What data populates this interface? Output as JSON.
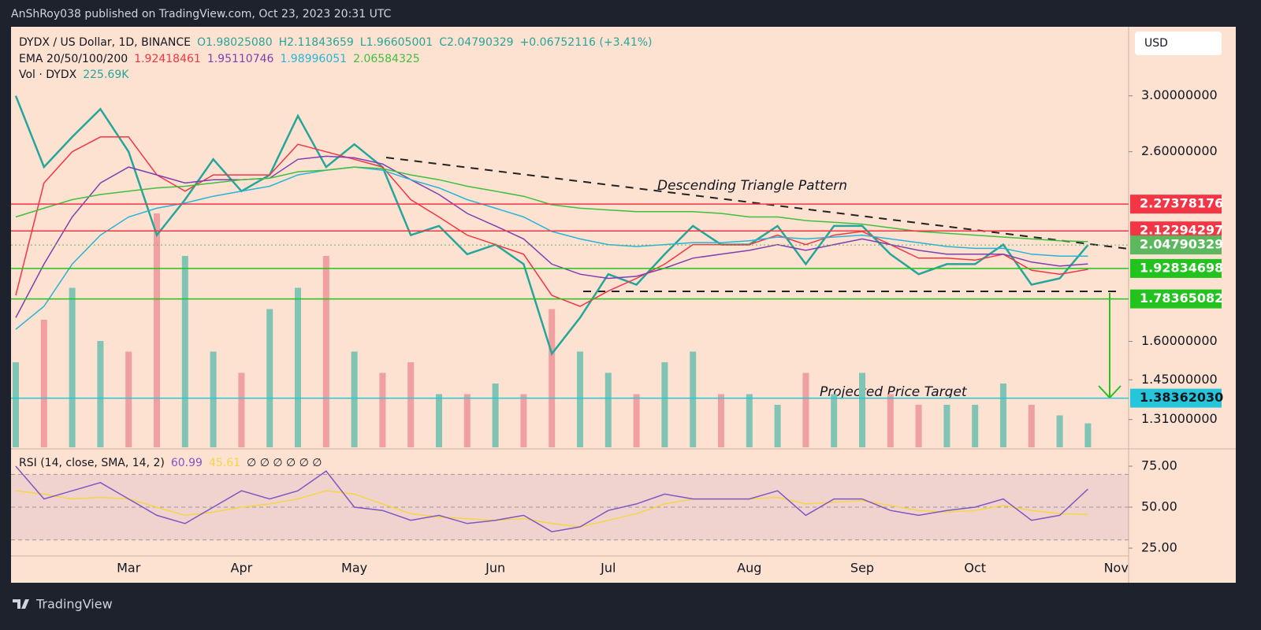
{
  "header": {
    "published": "AnShRoy038 published on TradingView.com, Oct 23, 2023 20:31 UTC"
  },
  "footer": {
    "brand": "TradingView"
  },
  "legend": {
    "symbol": "DYDX / US Dollar, 1D, BINANCE",
    "open": "O1.98025080",
    "high": "H2.11843659",
    "low": "L1.96605001",
    "close": "C2.04790329",
    "change": "+0.06752116 (+3.41%)",
    "ema_title": "EMA 20/50/100/200",
    "volume_title": "Vol · DYDX",
    "volume_value": "225.69K",
    "currency": "USD",
    "rsi_title": "RSI (14, close, SMA, 14, 2)",
    "rsi_value": "60.99",
    "rsi_sma_value": "45.61",
    "rsi_extra": "∅ ∅ ∅ ∅ ∅ ∅"
  },
  "chart_data": {
    "type": "line",
    "log_scale": true,
    "annotations": [
      "Descending Triangle Pattern",
      "Projected Price Target"
    ],
    "categories": [
      null,
      null,
      null,
      null,
      "Mar",
      null,
      null,
      null,
      "Apr",
      null,
      null,
      null,
      "May",
      null,
      null,
      null,
      null,
      "Jun",
      null,
      null,
      null,
      "Jul",
      null,
      null,
      null,
      null,
      "Aug",
      null,
      null,
      null,
      "Sep",
      null,
      null,
      null,
      "Oct",
      null,
      null,
      null,
      null,
      "Nov"
    ],
    "ylim": [
      1.22,
      3.58
    ],
    "yticks": [
      {
        "value": 3.0,
        "label": "3.00000000"
      },
      {
        "value": 2.6,
        "label": "2.60000000"
      },
      {
        "value": 1.6,
        "label": "1.60000000"
      },
      {
        "value": 1.45,
        "label": "1.45000000"
      },
      {
        "value": 1.31,
        "label": "1.31000000"
      }
    ],
    "price_lines": [
      {
        "value": 2.27378176,
        "label": "2.27378176",
        "color": "#f23645"
      },
      {
        "value": 2.12294297,
        "label": "2.12294297",
        "color": "#f23645"
      },
      {
        "value": 2.04790329,
        "label": "2.04790329",
        "color": "#5cb85c"
      },
      {
        "value": 1.92834698,
        "label": "1.92834698",
        "color": "#22c31f"
      },
      {
        "value": 1.78365082,
        "label": "1.78365082",
        "color": "#22c31f"
      },
      {
        "value": 1.3836203,
        "label": "1.38362030",
        "color": "#26c6da"
      }
    ],
    "series": [
      {
        "name": "DYDX close",
        "color": "#26a69a",
        "values": [
          3.0,
          2.5,
          2.7,
          2.9,
          2.6,
          2.1,
          2.3,
          2.55,
          2.35,
          2.45,
          2.85,
          2.5,
          2.65,
          2.5,
          2.1,
          2.15,
          2.0,
          2.05,
          1.95,
          1.55,
          1.7,
          1.9,
          1.85,
          2.0,
          2.15,
          2.05,
          2.05,
          2.15,
          1.95,
          2.15,
          2.15,
          2.0,
          1.9,
          1.95,
          1.95,
          2.05,
          1.85,
          1.88,
          2.04790329,
          null
        ]
      },
      {
        "name": "EMA 20",
        "color": "#f23645",
        "values": [
          1.8,
          2.4,
          2.6,
          2.7,
          2.7,
          2.45,
          2.35,
          2.45,
          2.45,
          2.45,
          2.65,
          2.6,
          2.55,
          2.5,
          2.3,
          2.2,
          2.1,
          2.05,
          2.0,
          1.8,
          1.75,
          1.82,
          1.88,
          1.95,
          2.05,
          2.05,
          2.05,
          2.1,
          2.05,
          2.1,
          2.12,
          2.05,
          1.98,
          1.98,
          1.97,
          2.0,
          1.92,
          1.9,
          1.92418461,
          null
        ]
      },
      {
        "name": "EMA 50",
        "color": "#7e3fb0",
        "values": [
          1.7,
          1.95,
          2.2,
          2.4,
          2.5,
          2.45,
          2.4,
          2.42,
          2.42,
          2.43,
          2.55,
          2.57,
          2.56,
          2.52,
          2.42,
          2.33,
          2.22,
          2.15,
          2.08,
          1.95,
          1.9,
          1.88,
          1.89,
          1.93,
          1.98,
          2.0,
          2.02,
          2.05,
          2.02,
          2.05,
          2.08,
          2.05,
          2.02,
          2.0,
          2.0,
          2.0,
          1.96,
          1.94,
          1.95110746,
          null
        ]
      },
      {
        "name": "EMA 100",
        "color": "#26b5d9",
        "values": [
          1.65,
          1.75,
          1.95,
          2.1,
          2.2,
          2.25,
          2.28,
          2.32,
          2.35,
          2.38,
          2.45,
          2.48,
          2.5,
          2.48,
          2.42,
          2.37,
          2.3,
          2.25,
          2.2,
          2.12,
          2.08,
          2.05,
          2.04,
          2.05,
          2.06,
          2.06,
          2.07,
          2.09,
          2.08,
          2.09,
          2.1,
          2.08,
          2.06,
          2.04,
          2.03,
          2.03,
          2.0,
          1.99,
          1.98996051,
          null
        ]
      },
      {
        "name": "EMA 200",
        "color": "#3fbf3f",
        "values": [
          2.2,
          2.25,
          2.3,
          2.33,
          2.35,
          2.37,
          2.38,
          2.4,
          2.42,
          2.43,
          2.47,
          2.48,
          2.5,
          2.49,
          2.45,
          2.42,
          2.38,
          2.35,
          2.32,
          2.27,
          2.25,
          2.24,
          2.23,
          2.23,
          2.23,
          2.22,
          2.2,
          2.2,
          2.18,
          2.17,
          2.16,
          2.14,
          2.12,
          2.11,
          2.1,
          2.09,
          2.08,
          2.07,
          2.06584325,
          null
        ]
      }
    ],
    "volume": {
      "color_up": "#7fc4b5",
      "color_down": "#f0a0a0",
      "vlim": [
        0,
        3000
      ],
      "values": [
        800,
        1200,
        1500,
        1000,
        900,
        2200,
        1800,
        900,
        700,
        1300,
        1500,
        1800,
        900,
        700,
        800,
        500,
        500,
        600,
        500,
        1300,
        900,
        700,
        500,
        800,
        900,
        500,
        500,
        400,
        700,
        500,
        700,
        500,
        400,
        400,
        400,
        600,
        400,
        300,
        225.69,
        null
      ]
    },
    "rsi": {
      "ylim": [
        20.7,
        84.6
      ],
      "yticks": [
        {
          "value": 75,
          "label": "75.00"
        },
        {
          "value": 50,
          "label": "50.00"
        },
        {
          "value": 25,
          "label": "25.00"
        }
      ],
      "bands": [
        70,
        50,
        30
      ],
      "series": [
        {
          "name": "RSI",
          "color": "#7e57c2",
          "values": [
            75,
            55,
            60,
            65,
            55,
            45,
            40,
            50,
            60,
            55,
            60,
            72,
            50,
            48,
            42,
            45,
            40,
            42,
            45,
            35,
            38,
            48,
            52,
            58,
            55,
            55,
            55,
            60,
            45,
            55,
            55,
            48,
            45,
            48,
            50,
            55,
            42,
            45,
            60.99,
            null
          ]
        },
        {
          "name": "RSI SMA",
          "color": "#f5d547",
          "values": [
            60,
            58,
            55,
            56,
            55,
            50,
            45,
            47,
            50,
            52,
            55,
            60,
            58,
            52,
            46,
            44,
            43,
            42,
            43,
            40,
            38,
            42,
            46,
            52,
            55,
            55,
            55,
            56,
            52,
            53,
            54,
            51,
            48,
            47,
            48,
            51,
            48,
            46,
            45.61,
            null
          ]
        }
      ]
    }
  }
}
